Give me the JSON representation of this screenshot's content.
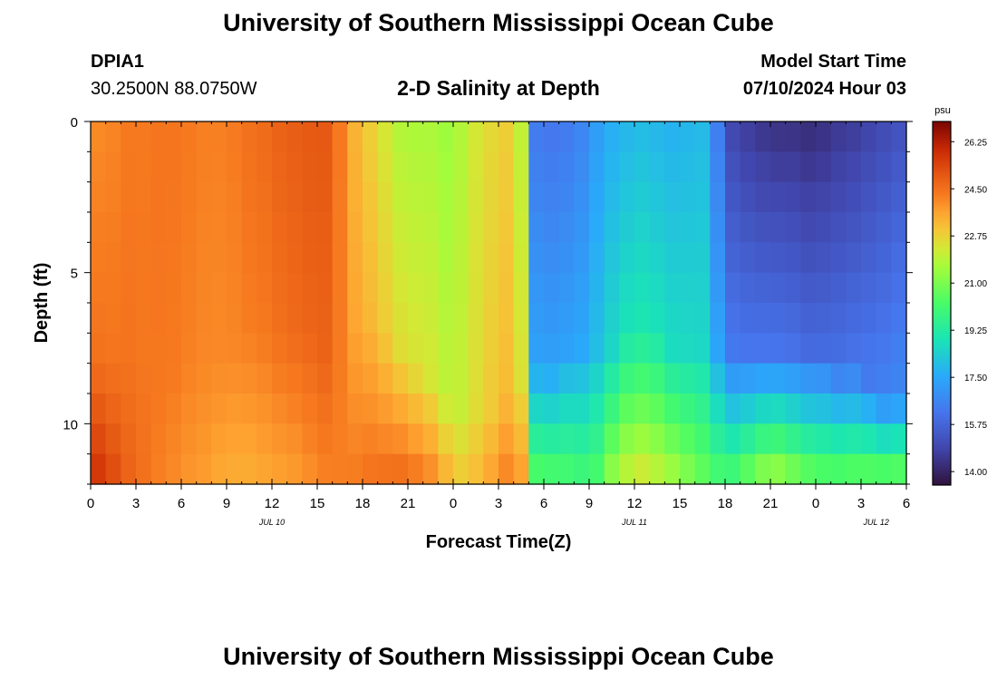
{
  "header": {
    "title": "University of Southern Mississippi Ocean Cube",
    "station_id": "DPIA1",
    "station_coords": "30.2500N  88.0750W",
    "chart_title": "2-D Salinity at Depth",
    "model_start_label": "Model Start Time",
    "model_start_value": "07/10/2024 Hour 03"
  },
  "footer": {
    "title": "University of Southern Mississippi Ocean Cube"
  },
  "chart_data": {
    "type": "heatmap",
    "title": "2-D Salinity at Depth",
    "xlabel": "Forecast Time(Z)",
    "ylabel": "Depth (ft)",
    "x_ticks": [
      {
        "hour": 0,
        "label": "0"
      },
      {
        "hour": 3,
        "label": "3"
      },
      {
        "hour": 6,
        "label": "6"
      },
      {
        "hour": 9,
        "label": "9"
      },
      {
        "hour": 12,
        "label": "12"
      },
      {
        "hour": 15,
        "label": "15"
      },
      {
        "hour": 18,
        "label": "18"
      },
      {
        "hour": 21,
        "label": "21"
      },
      {
        "hour": 24,
        "label": "0"
      },
      {
        "hour": 27,
        "label": "3"
      },
      {
        "hour": 30,
        "label": "6"
      },
      {
        "hour": 33,
        "label": "9"
      },
      {
        "hour": 36,
        "label": "12"
      },
      {
        "hour": 39,
        "label": "15"
      },
      {
        "hour": 42,
        "label": "18"
      },
      {
        "hour": 45,
        "label": "21"
      },
      {
        "hour": 48,
        "label": "0"
      },
      {
        "hour": 51,
        "label": "3"
      },
      {
        "hour": 54,
        "label": "6"
      }
    ],
    "date_labels": [
      {
        "hour": 12,
        "label": "JUL 10"
      },
      {
        "hour": 36,
        "label": "JUL 11"
      },
      {
        "hour": 52,
        "label": "JUL 12"
      }
    ],
    "x_range_hours": [
      0,
      54
    ],
    "y_ticks": [
      {
        "depth": 0,
        "label": "0"
      },
      {
        "depth": 5,
        "label": "5"
      },
      {
        "depth": 10,
        "label": "10"
      }
    ],
    "y_range": [
      0,
      12
    ],
    "colorbar": {
      "unit": "psu",
      "range": [
        13.5,
        27
      ],
      "tick_values": [
        26.25,
        24.5,
        22.75,
        21,
        19.25,
        17.5,
        15.75,
        14
      ],
      "tick_labels": [
        "26.25",
        "24.50",
        "22.75",
        "21.00",
        "19.25",
        "17.50",
        "15.75",
        "14.00"
      ]
    },
    "time_hours": [
      0,
      1,
      2,
      3,
      4,
      5,
      6,
      7,
      8,
      9,
      10,
      11,
      12,
      13,
      14,
      15,
      16,
      17,
      18,
      19,
      20,
      21,
      22,
      23,
      24,
      25,
      26,
      27,
      28,
      29,
      30,
      31,
      32,
      33,
      34,
      35,
      36,
      37,
      38,
      39,
      40,
      41,
      42,
      43,
      44,
      45,
      46,
      47,
      48,
      49,
      50,
      51,
      52,
      53,
      54
    ],
    "depth_levels_ft": [
      0.5,
      1.5,
      2.5,
      3.5,
      4.5,
      5.5,
      6.5,
      7.5,
      8.5,
      9.5,
      10.5,
      11.5
    ],
    "salinity_top_psu": [
      24.0,
      24.1,
      24.3,
      24.3,
      24.4,
      24.4,
      24.3,
      24.2,
      24.2,
      24.3,
      24.5,
      24.6,
      24.8,
      24.9,
      25.0,
      25.0,
      24.3,
      23.3,
      22.8,
      22.3,
      21.8,
      21.7,
      21.7,
      21.5,
      21.8,
      22.3,
      22.6,
      22.8,
      22.0,
      16.3,
      16.2,
      16.3,
      16.6,
      17.2,
      17.6,
      17.8,
      17.9,
      17.8,
      17.7,
      17.8,
      17.9,
      16.4,
      14.9,
      14.6,
      14.4,
      14.3,
      14.3,
      14.2,
      14.3,
      14.5,
      14.6,
      14.8,
      15.0,
      15.2,
      15.4
    ],
    "salinity_bottom_psu": [
      25.8,
      25.3,
      24.8,
      24.5,
      24.2,
      24.0,
      23.8,
      23.7,
      23.5,
      23.4,
      23.4,
      23.5,
      23.6,
      23.7,
      23.9,
      24.1,
      24.2,
      24.3,
      24.5,
      24.6,
      24.7,
      24.5,
      24.2,
      23.5,
      23.0,
      23.2,
      23.7,
      24.2,
      23.8,
      20.6,
      20.5,
      20.4,
      20.2,
      20.4,
      21.5,
      22.2,
      22.5,
      22.2,
      21.8,
      21.3,
      20.8,
      20.4,
      20.4,
      21.0,
      21.6,
      21.8,
      21.4,
      21.0,
      20.8,
      20.8,
      20.9,
      21.0,
      21.0,
      21.1,
      21.1
    ],
    "profile_note_start": 24.5,
    "halocline_depth_ft": [
      8,
      8,
      8,
      8,
      8,
      8,
      8,
      8,
      8,
      7.5,
      7,
      7,
      7,
      7,
      7,
      7.5,
      7.5,
      6.5,
      6.5,
      7,
      7.5,
      8,
      8.5,
      9,
      9.5,
      9.5,
      9.5,
      9,
      8.5,
      8,
      8,
      7.5,
      7.5,
      7.5,
      7.5,
      7,
      7,
      7,
      7.5,
      7.5,
      7.5,
      7.5,
      7.5,
      7.5,
      7.5,
      7.5,
      7.5,
      7.5,
      7.5,
      8,
      8,
      8.5,
      9,
      9,
      9
    ]
  }
}
